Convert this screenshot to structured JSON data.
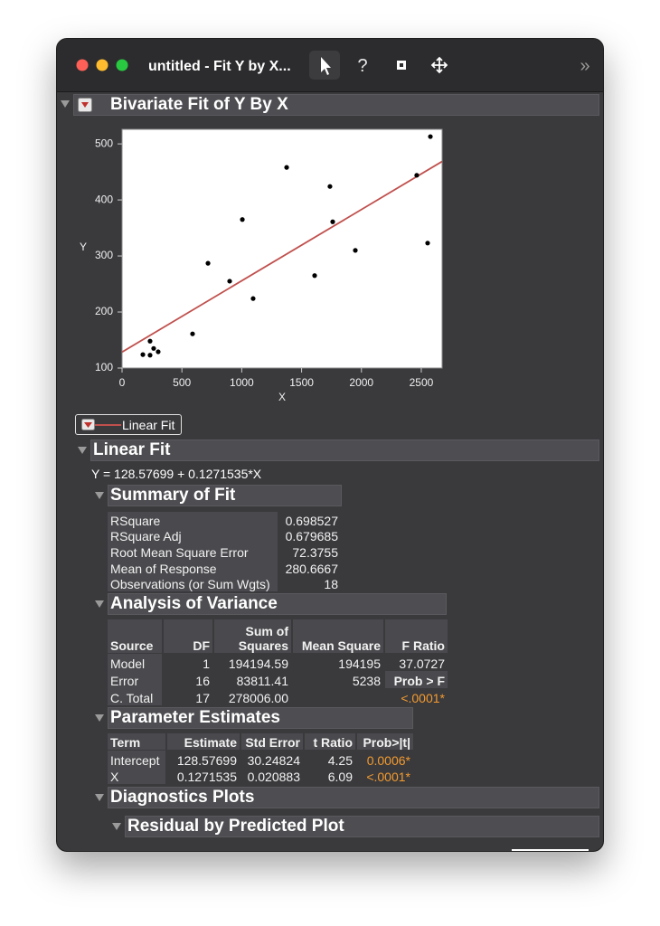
{
  "window": {
    "title": "untitled - Fit Y by X...",
    "toolbar": {
      "help": "?",
      "overflow": "»"
    }
  },
  "report_title": "Bivariate Fit of Y By X",
  "chart_data": {
    "type": "scatter",
    "x_label": "X",
    "y_label": "Y",
    "x": [
      2576,
      1375,
      1737,
      2462,
      1005,
      1760,
      718,
      1949,
      2553,
      899,
      1609,
      1095,
      589,
      234,
      264,
      174,
      234,
      302
    ],
    "values": [
      513,
      458,
      424,
      444,
      365,
      361,
      287,
      310,
      323,
      255,
      265,
      224,
      161,
      148,
      135,
      124,
      123,
      129
    ],
    "color": "#000000",
    "fit_color": "#c0504d",
    "xlim": [
      0,
      2674
    ],
    "ylim": [
      100,
      526
    ],
    "xticks": [
      0,
      500,
      1000,
      1500,
      2000,
      2500
    ],
    "yticks": [
      100,
      200,
      300,
      400,
      500
    ]
  },
  "fit_legend": "Linear Fit",
  "linear_fit": {
    "title": "Linear Fit",
    "equation": "Y = 128.57699 + 0.1271535*X",
    "summary_of_fit": {
      "title": "Summary of Fit",
      "rows": [
        [
          "RSquare",
          "0.698527"
        ],
        [
          "RSquare Adj",
          "0.679685"
        ],
        [
          "Root Mean Square Error",
          "72.3755"
        ],
        [
          "Mean of Response",
          "280.6667"
        ],
        [
          "Observations (or Sum Wgts)",
          "18"
        ]
      ]
    },
    "analysis_of_variance": {
      "title": "Analysis of Variance",
      "columns": [
        "Source",
        "DF",
        "Sum of Squares",
        "Mean Square",
        "F Ratio"
      ],
      "rows": [
        [
          "Model",
          "1",
          "194194.59",
          "194195",
          "37.0727"
        ],
        [
          "Error",
          "16",
          "83811.41",
          "5238",
          "Prob > F"
        ],
        [
          "C. Total",
          "17",
          "278006.00",
          null,
          "<.0001*"
        ]
      ]
    },
    "parameter_estimates": {
      "title": "Parameter Estimates",
      "columns": [
        "Term",
        "Estimate",
        "Std Error",
        "t Ratio",
        "Prob>|t|"
      ],
      "rows": [
        [
          "Intercept",
          "128.57699",
          "30.24824",
          "4.25",
          "0.0006*"
        ],
        [
          "X",
          "0.1271535",
          "0.020883",
          "6.09",
          "<.0001*"
        ]
      ]
    },
    "alert_color": "#f39a2e"
  },
  "diagnostics_plots": {
    "title": "Diagnostics Plots",
    "residual_plot": {
      "title": "Residual by Predicted Plot"
    }
  }
}
